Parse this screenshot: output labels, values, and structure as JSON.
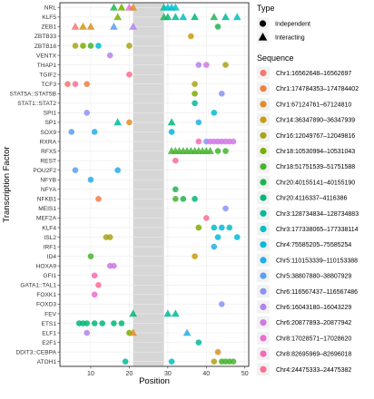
{
  "chart_data": {
    "type": "scatter",
    "xlabel": "Position",
    "ylabel": "Transcription Factor",
    "xlim": [
      2,
      51
    ],
    "x_ticks": [
      10,
      20,
      30,
      40,
      50
    ],
    "shaded_region": [
      21,
      29
    ],
    "grid": true,
    "legend_placement": "right",
    "factors": [
      "NRL",
      "KLF5",
      "ZEB1",
      "ZBTB33",
      "ZBTB18",
      "VENTX",
      "THAP1",
      "TGIF2",
      "TCF3",
      "STAT5A::STAT5B",
      "STAT1::STAT2",
      "SPI1",
      "SP1",
      "SOX9",
      "RXRA",
      "RFX5",
      "REST",
      "POU2F2",
      "NFYB",
      "NFYA",
      "NFKB1",
      "MEIS1",
      "MEF2A",
      "KLF4",
      "ISL2",
      "IRF1",
      "ID4",
      "HOXA9",
      "GFI1",
      "GATA1::TAL1",
      "FOXK1",
      "FOXD3",
      "FEV",
      "ETS1",
      "ELF1",
      "E2F1",
      "DDIT3::CEBPA",
      "ATOH1"
    ],
    "type_legend": {
      "title": "Type",
      "items": [
        {
          "label": "Independent",
          "shape": "circle"
        },
        {
          "label": "Interacting",
          "shape": "triangle"
        }
      ]
    },
    "sequence_legend": {
      "title": "Sequence",
      "items": [
        {
          "label": "Chr1:16562648–16562697",
          "color": "#F8766D"
        },
        {
          "label": "Chr1:174784353–174784402",
          "color": "#EE8043"
        },
        {
          "label": "Chr1:67124761–67124810",
          "color": "#DF8E25"
        },
        {
          "label": "Chr14:36347890–36347939",
          "color": "#CA9A12"
        },
        {
          "label": "Chr16:12049767–12049816",
          "color": "#A9A417"
        },
        {
          "label": "Chr18:10530994–10531043",
          "color": "#7CAE00"
        },
        {
          "label": "Chr18:51751539–51751588",
          "color": "#45B42F"
        },
        {
          "label": "Chr20:40155141–40155190",
          "color": "#1FB650"
        },
        {
          "label": "Chr20:4116337–4116386",
          "color": "#00B875"
        },
        {
          "label": "Chr3:128734834–128734883",
          "color": "#00BA98"
        },
        {
          "label": "Chr3:177338065–177338114",
          "color": "#00BFC4"
        },
        {
          "label": "Chr4:75585205–75585254",
          "color": "#00BBDA"
        },
        {
          "label": "Chr5:110153339–110153388",
          "color": "#26ADE8"
        },
        {
          "label": "Chr5:38807880–38807929",
          "color": "#5C9FF0"
        },
        {
          "label": "Chr6:116567437–116567486",
          "color": "#8B94F4"
        },
        {
          "label": "Chr6:16043180–16043229",
          "color": "#B184F0"
        },
        {
          "label": "Chr6:20877893–20877942",
          "color": "#D178E6"
        },
        {
          "label": "Chr8:17028571–17028620",
          "color": "#E86FD0"
        },
        {
          "label": "Chr8:82695969–82696018",
          "color": "#F56AB5"
        },
        {
          "label": "Chr4:24475333–24475382",
          "color": "#FB6F93"
        }
      ]
    },
    "points": [
      {
        "f": "NRL",
        "x": 16,
        "s": "t",
        "c": 7
      },
      {
        "f": "NRL",
        "x": 18,
        "s": "t",
        "c": 5
      },
      {
        "f": "NRL",
        "x": 20,
        "s": "t",
        "c": 17
      },
      {
        "f": "NRL",
        "x": 21,
        "s": "t",
        "c": 2
      },
      {
        "f": "NRL",
        "x": 29,
        "s": "t",
        "c": 9
      },
      {
        "f": "NRL",
        "x": 30,
        "s": "t",
        "c": 10
      },
      {
        "f": "NRL",
        "x": 31,
        "s": "t",
        "c": 11
      },
      {
        "f": "NRL",
        "x": 32,
        "s": "t",
        "c": 10
      },
      {
        "f": "KLF5",
        "x": 17,
        "s": "t",
        "c": 5
      },
      {
        "f": "KLF5",
        "x": 29,
        "s": "t",
        "c": 7
      },
      {
        "f": "KLF5",
        "x": 30,
        "s": "t",
        "c": 8
      },
      {
        "f": "KLF5",
        "x": 32,
        "s": "t",
        "c": 9
      },
      {
        "f": "KLF5",
        "x": 34,
        "s": "t",
        "c": 10
      },
      {
        "f": "KLF5",
        "x": 37,
        "s": "t",
        "c": 8
      },
      {
        "f": "KLF5",
        "x": 42,
        "s": "t",
        "c": 7
      },
      {
        "f": "KLF5",
        "x": 45,
        "s": "t",
        "c": 9
      },
      {
        "f": "KLF5",
        "x": 48,
        "s": "t",
        "c": 10
      },
      {
        "f": "ZEB1",
        "x": 6,
        "s": "t",
        "c": 0
      },
      {
        "f": "ZEB1",
        "x": 8,
        "s": "t",
        "c": 3
      },
      {
        "f": "ZEB1",
        "x": 10,
        "s": "t",
        "c": 2
      },
      {
        "f": "ZEB1",
        "x": 16,
        "s": "t",
        "c": 13
      },
      {
        "f": "ZEB1",
        "x": 21,
        "s": "t",
        "c": 15
      },
      {
        "f": "ZEB1",
        "x": 43,
        "s": "c",
        "c": 7
      },
      {
        "f": "ZBTB33",
        "x": 36,
        "s": "c",
        "c": 3
      },
      {
        "f": "ZBTB18",
        "x": 6,
        "s": "c",
        "c": 4
      },
      {
        "f": "ZBTB18",
        "x": 8,
        "s": "c",
        "c": 5
      },
      {
        "f": "ZBTB18",
        "x": 10,
        "s": "c",
        "c": 6
      },
      {
        "f": "ZBTB18",
        "x": 12,
        "s": "c",
        "c": 11
      },
      {
        "f": "ZBTB18",
        "x": 20,
        "s": "c",
        "c": 4
      },
      {
        "f": "VENTX",
        "x": 15,
        "s": "c",
        "c": 15
      },
      {
        "f": "THAP1",
        "x": 38,
        "s": "c",
        "c": 15
      },
      {
        "f": "THAP1",
        "x": 40,
        "s": "c",
        "c": 16
      },
      {
        "f": "THAP1",
        "x": 45,
        "s": "c",
        "c": 4
      },
      {
        "f": "TGIF2",
        "x": 20,
        "s": "c",
        "c": 19
      },
      {
        "f": "TCF3",
        "x": 4,
        "s": "c",
        "c": 0
      },
      {
        "f": "TCF3",
        "x": 6,
        "s": "c",
        "c": 19
      },
      {
        "f": "TCF3",
        "x": 9,
        "s": "c",
        "c": 1
      },
      {
        "f": "TCF3",
        "x": 37,
        "s": "c",
        "c": 4
      },
      {
        "f": "STAT5A::STAT5B",
        "x": 37,
        "s": "c",
        "c": 5
      },
      {
        "f": "STAT5A::STAT5B",
        "x": 44,
        "s": "c",
        "c": 14
      },
      {
        "f": "STAT1::STAT2",
        "x": 37,
        "s": "c",
        "c": 9
      },
      {
        "f": "SPI1",
        "x": 9,
        "s": "c",
        "c": 14
      },
      {
        "f": "SPI1",
        "x": 42,
        "s": "c",
        "c": 11
      },
      {
        "f": "SP1",
        "x": 17,
        "s": "t",
        "c": 9
      },
      {
        "f": "SP1",
        "x": 20,
        "s": "c",
        "c": 2
      },
      {
        "f": "SP1",
        "x": 31,
        "s": "t",
        "c": 8
      },
      {
        "f": "SP1",
        "x": 38,
        "s": "c",
        "c": 12
      },
      {
        "f": "SOX9",
        "x": 5,
        "s": "c",
        "c": 13
      },
      {
        "f": "SOX9",
        "x": 11,
        "s": "c",
        "c": 12
      },
      {
        "f": "SOX9",
        "x": 31,
        "s": "c",
        "c": 11
      },
      {
        "f": "RXRA",
        "x": 38,
        "s": "c",
        "c": 18
      },
      {
        "f": "RXRA",
        "x": 40,
        "s": "c",
        "c": 14
      },
      {
        "f": "RXRA",
        "x": 41,
        "s": "c",
        "c": 16
      },
      {
        "f": "RXRA",
        "x": 42,
        "s": "c",
        "c": 16
      },
      {
        "f": "RXRA",
        "x": 43,
        "s": "c",
        "c": 16
      },
      {
        "f": "RXRA",
        "x": 44,
        "s": "c",
        "c": 16
      },
      {
        "f": "RXRA",
        "x": 45,
        "s": "c",
        "c": 16
      },
      {
        "f": "RXRA",
        "x": 46,
        "s": "c",
        "c": 16
      },
      {
        "f": "RXRA",
        "x": 47,
        "s": "c",
        "c": 16
      },
      {
        "f": "RFX5",
        "x": 31,
        "s": "t",
        "c": 6
      },
      {
        "f": "RFX5",
        "x": 32,
        "s": "t",
        "c": 6
      },
      {
        "f": "RFX5",
        "x": 33,
        "s": "t",
        "c": 6
      },
      {
        "f": "RFX5",
        "x": 34,
        "s": "t",
        "c": 6
      },
      {
        "f": "RFX5",
        "x": 35,
        "s": "t",
        "c": 6
      },
      {
        "f": "RFX5",
        "x": 36,
        "s": "t",
        "c": 6
      },
      {
        "f": "RFX5",
        "x": 37,
        "s": "t",
        "c": 6
      },
      {
        "f": "RFX5",
        "x": 38,
        "s": "t",
        "c": 6
      },
      {
        "f": "RFX5",
        "x": 39,
        "s": "t",
        "c": 6
      },
      {
        "f": "RFX5",
        "x": 40,
        "s": "t",
        "c": 6
      },
      {
        "f": "RFX5",
        "x": 41,
        "s": "t",
        "c": 6
      },
      {
        "f": "RFX5",
        "x": 43,
        "s": "c",
        "c": 6
      },
      {
        "f": "RFX5",
        "x": 45,
        "s": "c",
        "c": 6
      },
      {
        "f": "REST",
        "x": 32,
        "s": "c",
        "c": 19
      },
      {
        "f": "POU2F2",
        "x": 6,
        "s": "c",
        "c": 13
      },
      {
        "f": "POU2F2",
        "x": 17,
        "s": "c",
        "c": 12
      },
      {
        "f": "NFYB",
        "x": 10,
        "s": "c",
        "c": 12
      },
      {
        "f": "NFYA",
        "x": 32,
        "s": "c",
        "c": 7
      },
      {
        "f": "NFKB1",
        "x": 12,
        "s": "c",
        "c": 1
      },
      {
        "f": "NFKB1",
        "x": 32,
        "s": "c",
        "c": 6
      },
      {
        "f": "NFKB1",
        "x": 34,
        "s": "c",
        "c": 7
      },
      {
        "f": "NFKB1",
        "x": 37,
        "s": "c",
        "c": 8
      },
      {
        "f": "MEIS1",
        "x": 45,
        "s": "c",
        "c": 14
      },
      {
        "f": "MEF2A",
        "x": 40,
        "s": "c",
        "c": 19
      },
      {
        "f": "KLF4",
        "x": 38,
        "s": "c",
        "c": 5
      },
      {
        "f": "KLF4",
        "x": 42,
        "s": "c",
        "c": 10
      },
      {
        "f": "KLF4",
        "x": 44,
        "s": "c",
        "c": 11
      },
      {
        "f": "KLF4",
        "x": 46,
        "s": "c",
        "c": 10
      },
      {
        "f": "ISL2",
        "x": 14,
        "s": "c",
        "c": 4
      },
      {
        "f": "ISL2",
        "x": 15,
        "s": "c",
        "c": 4
      },
      {
        "f": "ISL2",
        "x": 43,
        "s": "c",
        "c": 11
      },
      {
        "f": "ISL2",
        "x": 48,
        "s": "c",
        "c": 11
      },
      {
        "f": "IRF1",
        "x": 42,
        "s": "c",
        "c": 12
      },
      {
        "f": "ID4",
        "x": 10,
        "s": "c",
        "c": 6
      },
      {
        "f": "ID4",
        "x": 37,
        "s": "c",
        "c": 3
      },
      {
        "f": "HOXA9",
        "x": 15,
        "s": "c",
        "c": 16
      },
      {
        "f": "HOXA9",
        "x": 16,
        "s": "c",
        "c": 16
      },
      {
        "f": "GFI1",
        "x": 11,
        "s": "c",
        "c": 18
      },
      {
        "f": "GATA1::TAL1",
        "x": 12,
        "s": "c",
        "c": 19
      },
      {
        "f": "FOXK1",
        "x": 11,
        "s": "c",
        "c": 17
      },
      {
        "f": "FOXD3",
        "x": 44,
        "s": "c",
        "c": 14
      },
      {
        "f": "FEV",
        "x": 21,
        "s": "t",
        "c": 8
      },
      {
        "f": "FEV",
        "x": 30,
        "s": "t",
        "c": 9
      },
      {
        "f": "FEV",
        "x": 32,
        "s": "t",
        "c": 9
      },
      {
        "f": "ETS1",
        "x": 7,
        "s": "c",
        "c": 8
      },
      {
        "f": "ETS1",
        "x": 8,
        "s": "c",
        "c": 8
      },
      {
        "f": "ETS1",
        "x": 9,
        "s": "c",
        "c": 8
      },
      {
        "f": "ETS1",
        "x": 11,
        "s": "c",
        "c": 8
      },
      {
        "f": "ETS1",
        "x": 13,
        "s": "c",
        "c": 8
      },
      {
        "f": "ETS1",
        "x": 16,
        "s": "c",
        "c": 8
      },
      {
        "f": "ETS1",
        "x": 18,
        "s": "c",
        "c": 8
      },
      {
        "f": "ELF1",
        "x": 9,
        "s": "c",
        "c": 15
      },
      {
        "f": "ELF1",
        "x": 20,
        "s": "c",
        "c": 5
      },
      {
        "f": "ELF1",
        "x": 21,
        "s": "t",
        "c": 2
      },
      {
        "f": "ELF1",
        "x": 35,
        "s": "t",
        "c": 12
      },
      {
        "f": "E2F1",
        "x": 38,
        "s": "c",
        "c": 9
      },
      {
        "f": "DDIT3::CEBPA",
        "x": 43,
        "s": "c",
        "c": 2
      },
      {
        "f": "ATOH1",
        "x": 19,
        "s": "c",
        "c": 9
      },
      {
        "f": "ATOH1",
        "x": 31,
        "s": "c",
        "c": 10
      },
      {
        "f": "ATOH1",
        "x": 42,
        "s": "c",
        "c": 4
      },
      {
        "f": "ATOH1",
        "x": 44,
        "s": "c",
        "c": 6
      },
      {
        "f": "ATOH1",
        "x": 45,
        "s": "c",
        "c": 6
      },
      {
        "f": "ATOH1",
        "x": 46,
        "s": "c",
        "c": 6
      },
      {
        "f": "ATOH1",
        "x": 47,
        "s": "c",
        "c": 6
      }
    ]
  }
}
